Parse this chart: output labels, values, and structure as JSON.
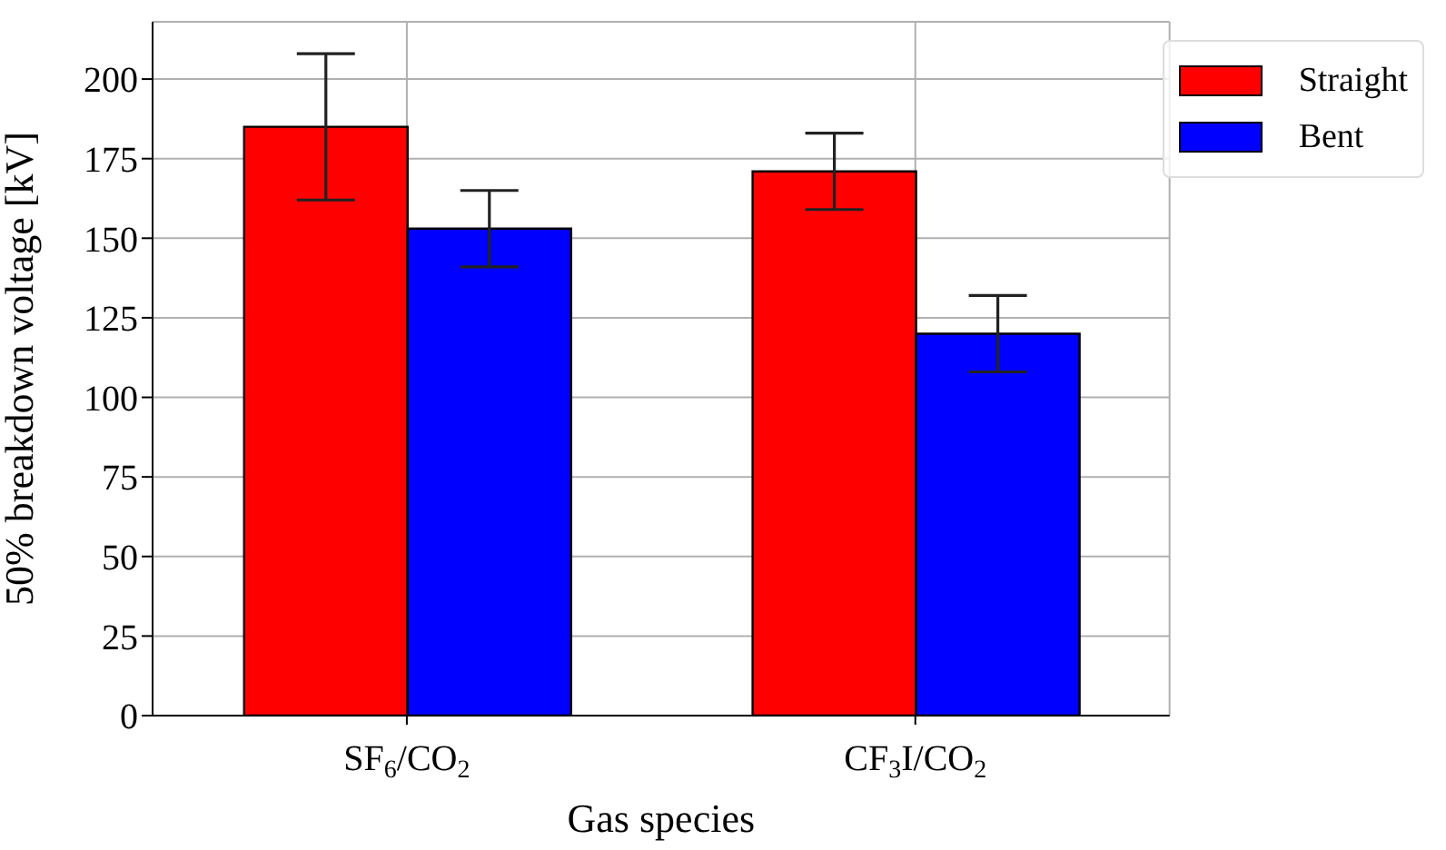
{
  "chart_data": {
    "type": "bar",
    "xlabel": "Gas species",
    "ylabel": "50% breakdown voltage [kV]",
    "categories": [
      "SF$_{6}$/CO$_{2}$",
      "CF$_{3}$I/CO$_{2}$"
    ],
    "series": [
      {
        "name": "Straight",
        "color": "#ff0000",
        "values": [
          185,
          171
        ],
        "errors": [
          23,
          12
        ]
      },
      {
        "name": "Bent",
        "color": "#0000ff",
        "values": [
          153,
          120
        ],
        "errors": [
          12,
          12
        ]
      }
    ],
    "ylim": [
      0,
      218
    ],
    "yticks": [
      0,
      25,
      50,
      75,
      100,
      125,
      150,
      175,
      200
    ],
    "grid": true,
    "legend": "top right"
  }
}
